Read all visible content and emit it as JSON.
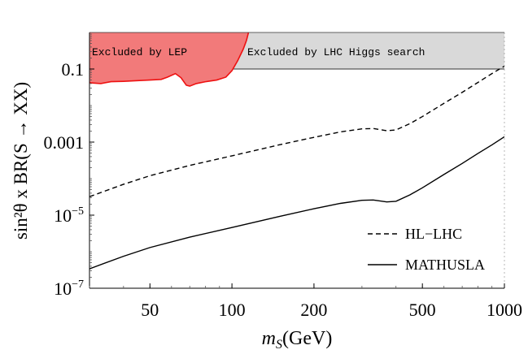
{
  "chart_data": {
    "type": "line",
    "xscale": "log",
    "yscale": "log",
    "xlim": [
      30,
      1000
    ],
    "ylim": [
      1e-07,
      1
    ],
    "xlabel": "m_S(GeV)",
    "ylabel": "sin²θ x BR(S → XX)",
    "xticks": [
      {
        "value": 50,
        "label": "50"
      },
      {
        "value": 100,
        "label": "100"
      },
      {
        "value": 200,
        "label": "200"
      },
      {
        "value": 500,
        "label": "500"
      },
      {
        "value": 1000,
        "label": "1000"
      }
    ],
    "yticks": [
      {
        "value": 0.1,
        "label": "0.1",
        "sup": ""
      },
      {
        "value": 0.001,
        "label": "0.001",
        "sup": ""
      },
      {
        "value": 1e-05,
        "label": "10",
        "sup": "−5"
      },
      {
        "value": 1e-07,
        "label": "10",
        "sup": "−7"
      }
    ],
    "series": [
      {
        "name": "HL−LHC",
        "style": "dashed",
        "color": "#000000",
        "x": [
          30,
          40,
          50,
          70,
          100,
          150,
          200,
          250,
          300,
          330,
          370,
          400,
          450,
          500,
          600,
          700,
          800,
          900,
          1000
        ],
        "y": [
          3.2e-05,
          7e-05,
          0.00012,
          0.00023,
          0.00042,
          0.00085,
          0.00135,
          0.0019,
          0.0023,
          0.00235,
          0.00205,
          0.00215,
          0.0032,
          0.005,
          0.0115,
          0.023,
          0.043,
          0.075,
          0.12
        ]
      },
      {
        "name": "MATHUSLA",
        "style": "solid",
        "color": "#000000",
        "x": [
          30,
          40,
          50,
          70,
          100,
          150,
          200,
          250,
          300,
          330,
          370,
          400,
          450,
          500,
          600,
          700,
          800,
          900,
          1000
        ],
        "y": [
          3.4e-07,
          7.5e-07,
          1.3e-06,
          2.5e-06,
          4.6e-06,
          9.3e-06,
          1.5e-05,
          2.1e-05,
          2.55e-05,
          2.6e-05,
          2.3e-05,
          2.4e-05,
          3.6e-05,
          5.6e-05,
          0.00013,
          0.00026,
          0.00049,
          0.00084,
          0.0014
        ]
      }
    ],
    "regions": [
      {
        "name": "Excluded by LHC Higgs search",
        "label": "Excluded by LHC Higgs search",
        "fill": "#d9d9d9",
        "stroke": "#333333",
        "x_range": [
          30,
          1000
        ],
        "y_lower": 0.1
      },
      {
        "name": "Excluded by LEP",
        "label": "Excluded by LEP",
        "fill": "#f27a7a",
        "stroke": "#ee1111",
        "boundary_x": [
          30,
          33,
          36,
          40,
          45,
          50,
          55,
          58,
          62,
          65,
          68,
          70,
          74,
          80,
          88,
          95,
          100,
          105,
          110,
          113,
          115
        ],
        "boundary_y": [
          0.042,
          0.04,
          0.045,
          0.046,
          0.048,
          0.05,
          0.052,
          0.06,
          0.075,
          0.058,
          0.036,
          0.034,
          0.04,
          0.045,
          0.05,
          0.06,
          0.09,
          0.17,
          0.35,
          0.6,
          1.0
        ]
      }
    ],
    "legend": {
      "position": "bottom-right"
    },
    "grid": false
  }
}
